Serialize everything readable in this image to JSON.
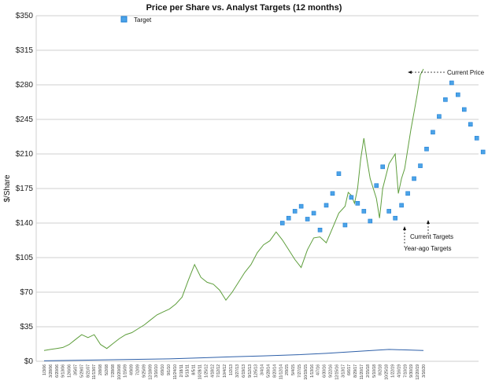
{
  "chart_data": {
    "type": "scatter",
    "title": "Price per Share vs. Analyst Targets (12 months)",
    "ylabel": "$/Share",
    "xlabel": "",
    "ylim": [
      0,
      350
    ],
    "yticks": [
      "$0",
      "$35",
      "$70",
      "$105",
      "$140",
      "$175",
      "$210",
      "$245",
      "$280",
      "$315",
      "$350"
    ],
    "xtick_labels": [
      "1/3/06",
      "3/28/06",
      "6/20/06",
      "9/13/06",
      "12/6/06",
      "3/5/07",
      "5/29/07",
      "8/21/07",
      "11/13/07",
      "2/8/08",
      "5/2/08",
      "7/28/08",
      "10/20/08",
      "1/15/09",
      "4/9/09",
      "7/2/09",
      "9/25/09",
      "12/18/09",
      "3/16/10",
      "6/9/10",
      "9/1/10",
      "11/24/10",
      "2/18/11",
      "5/13/11",
      "8/5/11",
      "10/28/11",
      "1/25/12",
      "4/18/12",
      "7/12/12",
      "10/4/12",
      "1/2/13",
      "3/27/13",
      "6/19/13",
      "9/12/13",
      "12/5/13",
      "3/4/14",
      "5/28/14",
      "8/20/14",
      "11/12/14",
      "2/9/15",
      "5/4/15",
      "7/27/15",
      "10/19/15",
      "1/13/16",
      "4/7/16",
      "6/30/16",
      "9/22/16",
      "12/15/16",
      "3/13/17",
      "6/6/17",
      "8/29/17",
      "11/20/17",
      "2/15/18",
      "5/10/18",
      "8/2/18",
      "10/25/18",
      "1/22/19",
      "4/16/19",
      "7/10/19",
      "9/30/19",
      "12/20/19",
      "3/16/20"
    ],
    "legend": {
      "label": "Target",
      "position": "top-center"
    },
    "grid": "horizontal",
    "annotations": {
      "current_price": "Current Price",
      "current_targets": "Current Targets",
      "year_ago_targets": "Year-ago Targets"
    },
    "colors": {
      "price": "#5e9e3c",
      "dividend": "#2d5fa8",
      "target": "#4ba3e8",
      "target_edge": "#1f7fd4"
    },
    "series": [
      {
        "kind": "line",
        "color": "#5e9e3c",
        "points": [
          [
            0,
            11
          ],
          [
            2,
            12
          ],
          [
            4,
            13
          ],
          [
            6,
            14
          ],
          [
            8,
            17
          ],
          [
            10,
            22
          ],
          [
            12,
            27
          ],
          [
            14,
            24
          ],
          [
            16,
            27
          ],
          [
            18,
            17
          ],
          [
            20,
            13
          ],
          [
            22,
            18
          ],
          [
            24,
            23
          ],
          [
            26,
            27
          ],
          [
            28,
            29
          ],
          [
            30,
            33
          ],
          [
            32,
            37
          ],
          [
            34,
            42
          ],
          [
            36,
            47
          ],
          [
            38,
            50
          ],
          [
            40,
            53
          ],
          [
            42,
            58
          ],
          [
            44,
            65
          ],
          [
            46,
            82
          ],
          [
            48,
            98
          ],
          [
            50,
            85
          ],
          [
            52,
            80
          ],
          [
            54,
            78
          ],
          [
            56,
            72
          ],
          [
            58,
            62
          ],
          [
            60,
            70
          ],
          [
            62,
            80
          ],
          [
            64,
            90
          ],
          [
            66,
            98
          ],
          [
            68,
            110
          ],
          [
            70,
            118
          ],
          [
            72,
            122
          ],
          [
            74,
            131
          ],
          [
            76,
            123
          ],
          [
            78,
            113
          ],
          [
            80,
            103
          ],
          [
            82,
            95
          ],
          [
            84,
            113
          ],
          [
            86,
            125
          ],
          [
            88,
            126
          ],
          [
            90,
            120
          ],
          [
            92,
            135
          ],
          [
            94,
            150
          ],
          [
            96,
            157
          ],
          [
            97,
            171
          ],
          [
            98,
            168
          ],
          [
            99,
            160
          ],
          [
            100,
            175
          ],
          [
            101,
            205
          ],
          [
            102,
            226
          ],
          [
            103,
            204
          ],
          [
            104,
            185
          ],
          [
            106,
            165
          ],
          [
            107,
            145
          ],
          [
            108,
            175
          ],
          [
            110,
            200
          ],
          [
            112,
            210
          ],
          [
            113,
            170
          ],
          [
            114,
            185
          ],
          [
            115,
            195
          ],
          [
            116,
            215
          ],
          [
            117,
            235
          ],
          [
            118,
            252
          ],
          [
            119,
            270
          ],
          [
            120,
            290
          ],
          [
            121,
            296
          ]
        ]
      },
      {
        "kind": "line",
        "color": "#2d5fa8",
        "points": [
          [
            0,
            0.5
          ],
          [
            10,
            1
          ],
          [
            20,
            1.5
          ],
          [
            30,
            2
          ],
          [
            40,
            2.5
          ],
          [
            50,
            3.5
          ],
          [
            60,
            4.5
          ],
          [
            70,
            5.5
          ],
          [
            80,
            6.5
          ],
          [
            90,
            8
          ],
          [
            100,
            10
          ],
          [
            110,
            12
          ],
          [
            121,
            11
          ]
        ]
      },
      {
        "kind": "scatter",
        "name": "Target",
        "points": [
          [
            76,
            140
          ],
          [
            78,
            145
          ],
          [
            80,
            152
          ],
          [
            82,
            157
          ],
          [
            84,
            144
          ],
          [
            86,
            150
          ],
          [
            88,
            133
          ],
          [
            90,
            158
          ],
          [
            92,
            170
          ],
          [
            94,
            190
          ],
          [
            96,
            138
          ],
          [
            98,
            166
          ],
          [
            100,
            160
          ],
          [
            102,
            152
          ],
          [
            104,
            142
          ],
          [
            106,
            178
          ],
          [
            108,
            197
          ],
          [
            110,
            152
          ],
          [
            112,
            145
          ],
          [
            114,
            158
          ],
          [
            116,
            170
          ],
          [
            118,
            185
          ],
          [
            120,
            198
          ],
          [
            122,
            215
          ],
          [
            124,
            232
          ],
          [
            126,
            248
          ],
          [
            128,
            265
          ],
          [
            130,
            282
          ],
          [
            132,
            270
          ],
          [
            134,
            255
          ],
          [
            136,
            240
          ],
          [
            138,
            226
          ],
          [
            140,
            212
          ]
        ]
      }
    ]
  }
}
